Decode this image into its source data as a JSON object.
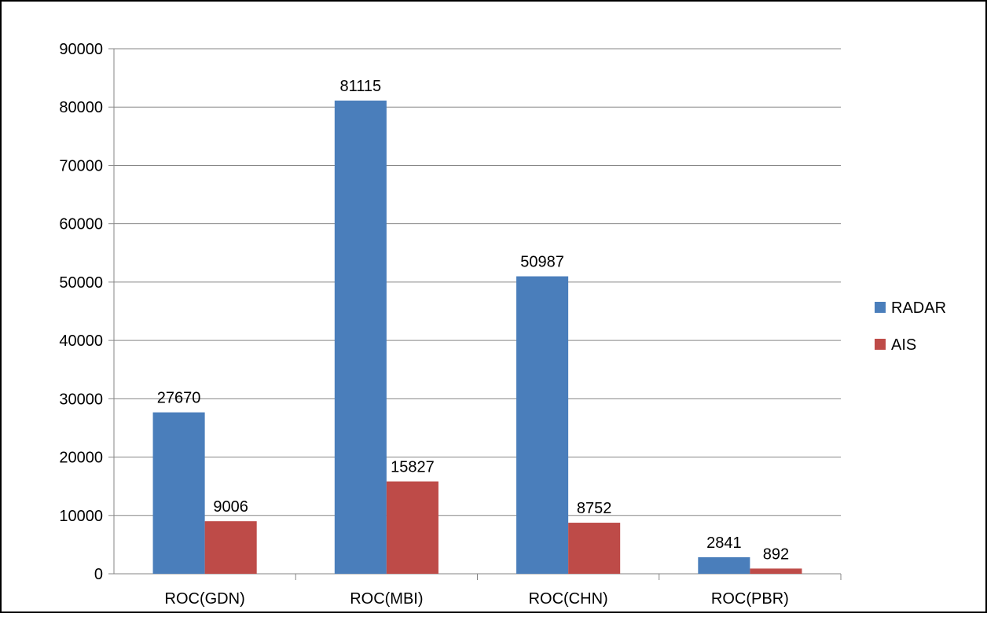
{
  "chart_data": {
    "type": "bar",
    "title": "",
    "xlabel": "",
    "ylabel": "",
    "categories": [
      "ROC(GDN)",
      "ROC(MBI)",
      "ROC(CHN)",
      "ROC(PBR)"
    ],
    "series": [
      {
        "name": "RADAR",
        "values": [
          27670,
          81115,
          50987,
          2841
        ],
        "color": "#4A7EBB"
      },
      {
        "name": "AIS",
        "values": [
          9006,
          15827,
          8752,
          892
        ],
        "color": "#BE4B48"
      }
    ],
    "ylim": [
      0,
      90000
    ],
    "yticks": [
      0,
      10000,
      20000,
      30000,
      40000,
      50000,
      60000,
      70000,
      80000,
      90000
    ],
    "grid": true,
    "legend": "right",
    "data_labels": true
  }
}
